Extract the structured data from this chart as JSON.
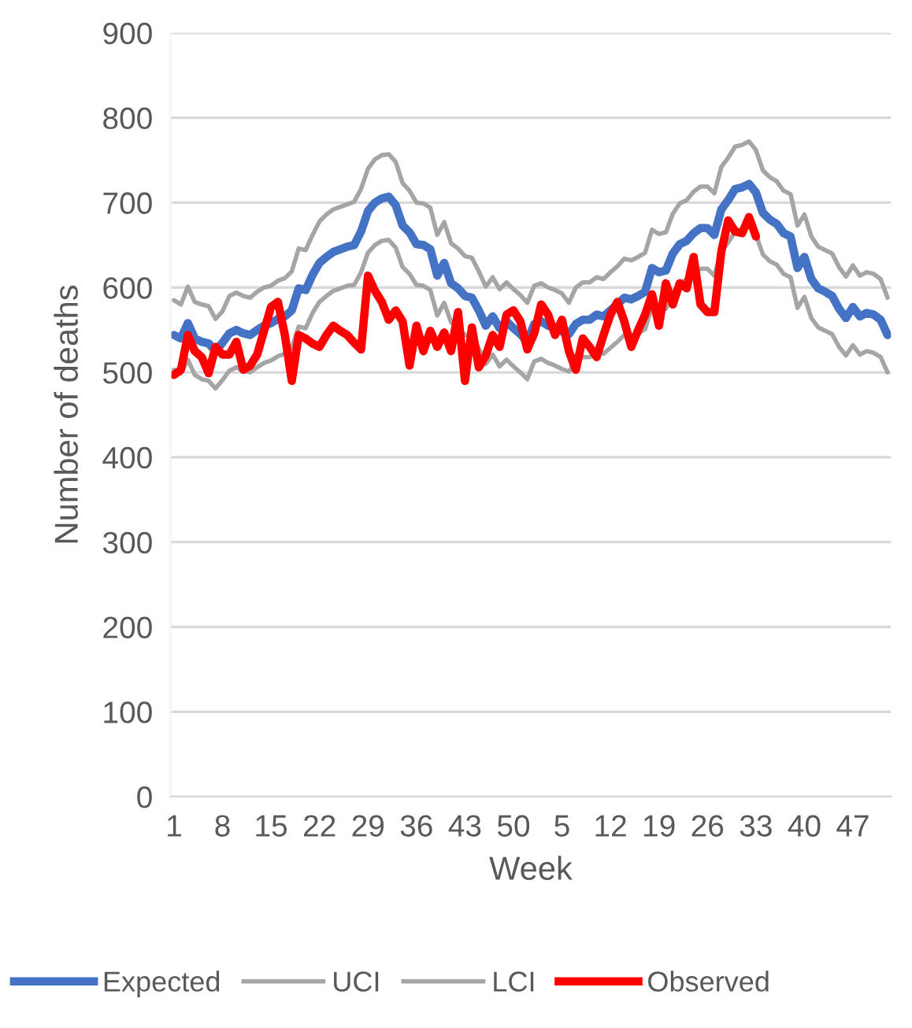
{
  "chart_data": {
    "type": "line",
    "xlabel": "Week",
    "ylabel": "Number of deaths",
    "categories": [
      "1",
      null,
      null,
      null,
      null,
      null,
      null,
      "8",
      null,
      null,
      null,
      null,
      null,
      null,
      "15",
      null,
      null,
      null,
      null,
      null,
      null,
      "22",
      null,
      null,
      null,
      null,
      null,
      null,
      "29",
      null,
      null,
      null,
      null,
      null,
      null,
      "36",
      null,
      null,
      null,
      null,
      null,
      null,
      "43",
      null,
      null,
      null,
      null,
      null,
      null,
      "50",
      null,
      null,
      null,
      null,
      null,
      null,
      "5",
      null,
      null,
      null,
      null,
      null,
      null,
      "12",
      null,
      null,
      null,
      null,
      null,
      null,
      "19",
      null,
      null,
      null,
      null,
      null,
      null,
      "26",
      null,
      null,
      null,
      null,
      null,
      null,
      "33",
      null,
      null,
      null,
      null,
      null,
      null,
      "40",
      null,
      null,
      null,
      null,
      null,
      null,
      "47",
      null,
      null,
      null,
      null,
      null
    ],
    "series": [
      {
        "name": "Expected",
        "color": "#4472c4",
        "values": [
          544,
          540,
          558,
          540,
          536,
          534,
          525,
          535,
          546,
          550,
          546,
          544,
          550,
          555,
          558,
          563,
          566,
          573,
          599,
          597,
          615,
          629,
          636,
          642,
          645,
          648,
          650,
          666,
          690,
          700,
          705,
          707,
          697,
          673,
          665,
          651,
          650,
          645,
          614,
          629,
          605,
          599,
          590,
          588,
          573,
          555,
          566,
          552,
          560,
          552,
          545,
          536,
          557,
          560,
          555,
          552,
          548,
          545,
          557,
          562,
          562,
          568,
          566,
          573,
          580,
          588,
          586,
          590,
          595,
          623,
          618,
          620,
          640,
          651,
          655,
          664,
          670,
          670,
          662,
          692,
          703,
          716,
          718,
          722,
          712,
          688,
          680,
          675,
          664,
          660,
          623,
          636,
          610,
          599,
          595,
          590,
          575,
          564,
          577,
          566,
          570,
          568,
          562,
          544
        ]
      },
      {
        "name": "UCI",
        "color": "#a5a5a5",
        "values": [
          585,
          580,
          601,
          583,
          580,
          578,
          563,
          572,
          590,
          594,
          590,
          588,
          595,
          600,
          602,
          608,
          611,
          619,
          646,
          644,
          662,
          678,
          686,
          692,
          695,
          698,
          701,
          716,
          740,
          751,
          756,
          757,
          748,
          723,
          714,
          700,
          699,
          694,
          662,
          677,
          652,
          646,
          637,
          635,
          619,
          601,
          612,
          598,
          606,
          598,
          591,
          582,
          602,
          605,
          600,
          597,
          593,
          582,
          600,
          606,
          606,
          612,
          610,
          618,
          625,
          634,
          632,
          636,
          641,
          668,
          663,
          665,
          687,
          699,
          703,
          713,
          719,
          719,
          711,
          742,
          753,
          766,
          768,
          772,
          762,
          738,
          730,
          725,
          714,
          710,
          673,
          686,
          660,
          648,
          644,
          640,
          624,
          613,
          626,
          614,
          618,
          616,
          610,
          588
        ]
      },
      {
        "name": "LCI",
        "color": "#a5a5a5",
        "values": [
          503,
          499,
          515,
          497,
          492,
          490,
          481,
          491,
          502,
          506,
          502,
          500,
          506,
          511,
          514,
          519,
          522,
          529,
          554,
          552,
          570,
          583,
          590,
          596,
          599,
          602,
          603,
          618,
          641,
          650,
          655,
          656,
          647,
          624,
          616,
          603,
          602,
          597,
          567,
          582,
          559,
          553,
          544,
          542,
          528,
          510,
          521,
          507,
          515,
          507,
          500,
          492,
          513,
          516,
          511,
          508,
          504,
          501,
          513,
          518,
          518,
          524,
          522,
          529,
          536,
          544,
          542,
          546,
          551,
          578,
          573,
          575,
          594,
          605,
          609,
          617,
          622,
          622,
          614,
          643,
          653,
          666,
          668,
          672,
          662,
          639,
          631,
          627,
          616,
          612,
          576,
          589,
          564,
          553,
          549,
          545,
          530,
          520,
          532,
          521,
          525,
          523,
          518,
          500
        ]
      },
      {
        "name": "Observed",
        "color": "#ff0000",
        "values": [
          497,
          503,
          544,
          525,
          518,
          499,
          530,
          521,
          521,
          536,
          503,
          508,
          521,
          549,
          577,
          583,
          544,
          490,
          544,
          540,
          534,
          530,
          544,
          555,
          549,
          544,
          535,
          527,
          614,
          596,
          583,
          562,
          573,
          560,
          508,
          555,
          525,
          549,
          530,
          547,
          525,
          571,
          490,
          553,
          506,
          520,
          544,
          530,
          568,
          573,
          560,
          527,
          546,
          580,
          568,
          544,
          562,
          525,
          503,
          540,
          530,
          518,
          544,
          568,
          583,
          560,
          530,
          550,
          568,
          592,
          555,
          605,
          580,
          605,
          599,
          636,
          580,
          571,
          571,
          642,
          679,
          666,
          664,
          683,
          660,
          null,
          null,
          null,
          null,
          null,
          null,
          null,
          null,
          null,
          null,
          null,
          null,
          null,
          null,
          null,
          null,
          null,
          null,
          null
        ]
      }
    ],
    "ylim": [
      0,
      900
    ],
    "yticks": [
      0,
      100,
      200,
      300,
      400,
      500,
      600,
      700,
      800,
      900
    ],
    "grid": "y",
    "legend": "bottom",
    "marker": "none",
    "line_style": "solid"
  }
}
